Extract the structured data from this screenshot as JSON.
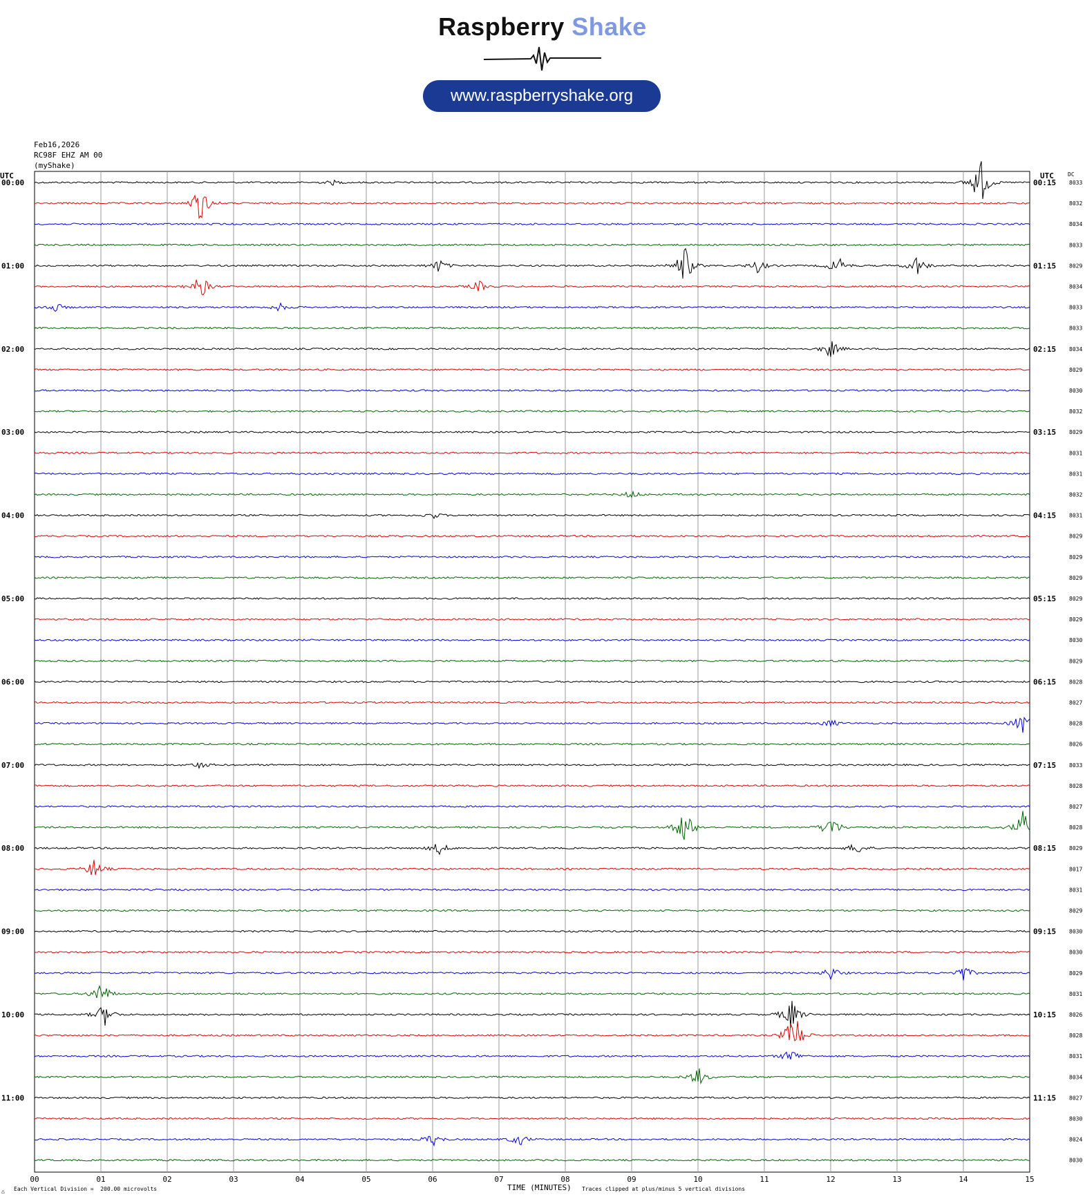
{
  "logo": {
    "name_part1": "Raspberry",
    "name_part2": "Shake",
    "url": "www.raspberryshake.org",
    "brand_color": "#7f98e6",
    "pill_color": "#1b3a93"
  },
  "header": {
    "date": "Feb16,2026",
    "station": "RC98F EHZ AM 00",
    "source": "(myShake)"
  },
  "labels": {
    "utc_left": "UTC",
    "utc_right": "UTC",
    "dc": "DC"
  },
  "footer": {
    "division": "Each Vertical Division =  200.00 microvolts",
    "time_title": "TIME (MINUTES)",
    "clipped": "Traces clipped at plus/minus 5 vertical divisions",
    "corner_mark": "△"
  },
  "chart_data": {
    "type": "line",
    "title": "",
    "xlabel": "TIME (MINUTES)",
    "ylabel": "",
    "xlim": [
      0,
      15
    ],
    "x_ticks": [
      "00",
      "01",
      "02",
      "03",
      "04",
      "05",
      "06",
      "07",
      "08",
      "09",
      "10",
      "11",
      "12",
      "13",
      "14",
      "15"
    ],
    "trace_colors": [
      "#000000",
      "#e00000",
      "#0000e0",
      "#006400"
    ],
    "grid": true,
    "left_hour_labels": [
      "00:00",
      "01:00",
      "02:00",
      "03:00",
      "04:00",
      "05:00",
      "06:00",
      "07:00",
      "08:00",
      "09:00",
      "10:00",
      "11:00"
    ],
    "right_hour_labels": [
      "00:15",
      "01:15",
      "02:15",
      "03:15",
      "04:15",
      "05:15",
      "06:15",
      "07:15",
      "08:15",
      "09:15",
      "10:15",
      "11:15"
    ],
    "dc_values": [
      "8033",
      "8032",
      "8034",
      "8033",
      "8029",
      "8034",
      "8033",
      "8033",
      "8034",
      "8029",
      "8030",
      "8032",
      "8029",
      "8031",
      "8031",
      "8032",
      "8031",
      "8029",
      "8029",
      "8029",
      "8029",
      "8029",
      "8030",
      "8029",
      "8028",
      "8027",
      "8028",
      "8026",
      "8033",
      "8028",
      "8027",
      "8028",
      "8029",
      "8017",
      "8031",
      "8029",
      "8030",
      "8030",
      "8029",
      "8031",
      "8026",
      "8028",
      "8031",
      "8034",
      "8027",
      "8030",
      "8024",
      "8030"
    ],
    "events": [
      {
        "row": 0,
        "minute": 4.5,
        "amp": 3
      },
      {
        "row": 0,
        "minute": 14.25,
        "amp": 40
      },
      {
        "row": 1,
        "minute": 2.5,
        "amp": 30
      },
      {
        "row": 4,
        "minute": 6.1,
        "amp": 10
      },
      {
        "row": 4,
        "minute": 9.8,
        "amp": 30
      },
      {
        "row": 4,
        "minute": 10.9,
        "amp": 10
      },
      {
        "row": 4,
        "minute": 12.1,
        "amp": 15
      },
      {
        "row": 4,
        "minute": 13.3,
        "amp": 15
      },
      {
        "row": 5,
        "minute": 2.5,
        "amp": 20
      },
      {
        "row": 5,
        "minute": 6.7,
        "amp": 8
      },
      {
        "row": 6,
        "minute": 0.3,
        "amp": 8
      },
      {
        "row": 6,
        "minute": 3.7,
        "amp": 6
      },
      {
        "row": 8,
        "minute": 12.0,
        "amp": 14
      },
      {
        "row": 15,
        "minute": 9.0,
        "amp": 6
      },
      {
        "row": 16,
        "minute": 6.0,
        "amp": 5
      },
      {
        "row": 26,
        "minute": 12.0,
        "amp": 6
      },
      {
        "row": 26,
        "minute": 14.9,
        "amp": 20
      },
      {
        "row": 28,
        "minute": 2.5,
        "amp": 5
      },
      {
        "row": 31,
        "minute": 9.8,
        "amp": 30
      },
      {
        "row": 31,
        "minute": 12.0,
        "amp": 20
      },
      {
        "row": 31,
        "minute": 14.9,
        "amp": 25
      },
      {
        "row": 32,
        "minute": 6.1,
        "amp": 10
      },
      {
        "row": 32,
        "minute": 12.4,
        "amp": 10
      },
      {
        "row": 33,
        "minute": 0.9,
        "amp": 15
      },
      {
        "row": 38,
        "minute": 12.0,
        "amp": 10
      },
      {
        "row": 38,
        "minute": 14.0,
        "amp": 12
      },
      {
        "row": 39,
        "minute": 1.0,
        "amp": 20
      },
      {
        "row": 40,
        "minute": 1.05,
        "amp": 18
      },
      {
        "row": 40,
        "minute": 11.4,
        "amp": 25
      },
      {
        "row": 41,
        "minute": 11.45,
        "amp": 40
      },
      {
        "row": 42,
        "minute": 11.4,
        "amp": 12
      },
      {
        "row": 43,
        "minute": 10.0,
        "amp": 15
      },
      {
        "row": 46,
        "minute": 6.0,
        "amp": 10
      },
      {
        "row": 46,
        "minute": 7.3,
        "amp": 10
      }
    ]
  }
}
